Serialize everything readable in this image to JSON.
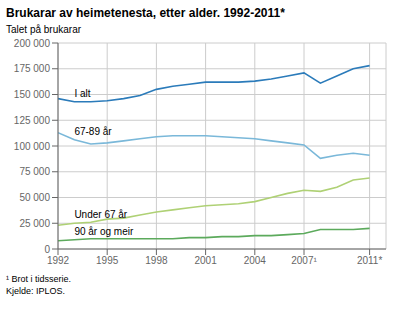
{
  "chart_data": {
    "type": "line",
    "title": "Brukarar av heimetenesta, etter alder. 1992-2011*",
    "y_label": "Talet på brukarar",
    "annotations": [
      "¹ Brot i tidsserie.",
      "Kjelde: IPLOS."
    ],
    "x": [
      1992,
      1993,
      1994,
      1995,
      1996,
      1997,
      1998,
      1999,
      2000,
      2001,
      2002,
      2003,
      2004,
      2005,
      2006,
      2007,
      2008,
      2009,
      2010,
      2011
    ],
    "series": [
      {
        "name": "I alt",
        "color": "#2b7bba",
        "values": [
          146000,
          143000,
          143000,
          144000,
          146000,
          149000,
          155000,
          158000,
          160000,
          162000,
          162000,
          162000,
          163000,
          165000,
          168000,
          171000,
          161000,
          168000,
          175000,
          178000
        ]
      },
      {
        "name": "67-89 år",
        "color": "#7ab8d9",
        "values": [
          113000,
          106000,
          102000,
          103000,
          105000,
          107000,
          109000,
          110000,
          110000,
          110000,
          109000,
          108000,
          107000,
          105000,
          103000,
          101000,
          88000,
          91000,
          93000,
          91000
        ]
      },
      {
        "name": "Under 67 år",
        "color": "#afd175",
        "values": [
          23000,
          25000,
          26000,
          29000,
          30000,
          33000,
          36000,
          38000,
          40000,
          42000,
          43000,
          44000,
          46000,
          50000,
          54000,
          57000,
          56000,
          60000,
          67000,
          69000
        ]
      },
      {
        "name": "90 år og meir",
        "color": "#5caa5c",
        "values": [
          8000,
          9000,
          10000,
          10000,
          10000,
          10000,
          10000,
          10000,
          11000,
          11000,
          12000,
          12000,
          13000,
          13000,
          14000,
          15000,
          19000,
          19000,
          19000,
          20000
        ]
      }
    ],
    "xlim": [
      1992,
      2012
    ],
    "xticks": [
      1992,
      1995,
      1998,
      2001,
      2004,
      {
        "value": 2007,
        "label": "2007¹"
      },
      {
        "value": 2011,
        "label": "2011*"
      }
    ],
    "ylim": [
      0,
      200000
    ],
    "yticks": [
      0,
      {
        "value": 25000,
        "label": "25 000"
      },
      {
        "value": 50000,
        "label": "50 000"
      },
      {
        "value": 75000,
        "label": "75 000"
      },
      {
        "value": 100000,
        "label": "100 000"
      },
      {
        "value": 125000,
        "label": "125 000"
      },
      {
        "value": 150000,
        "label": "150 000"
      },
      {
        "value": 175000,
        "label": "175 000"
      },
      {
        "value": 200000,
        "label": "200 000"
      }
    ],
    "grid": true
  }
}
